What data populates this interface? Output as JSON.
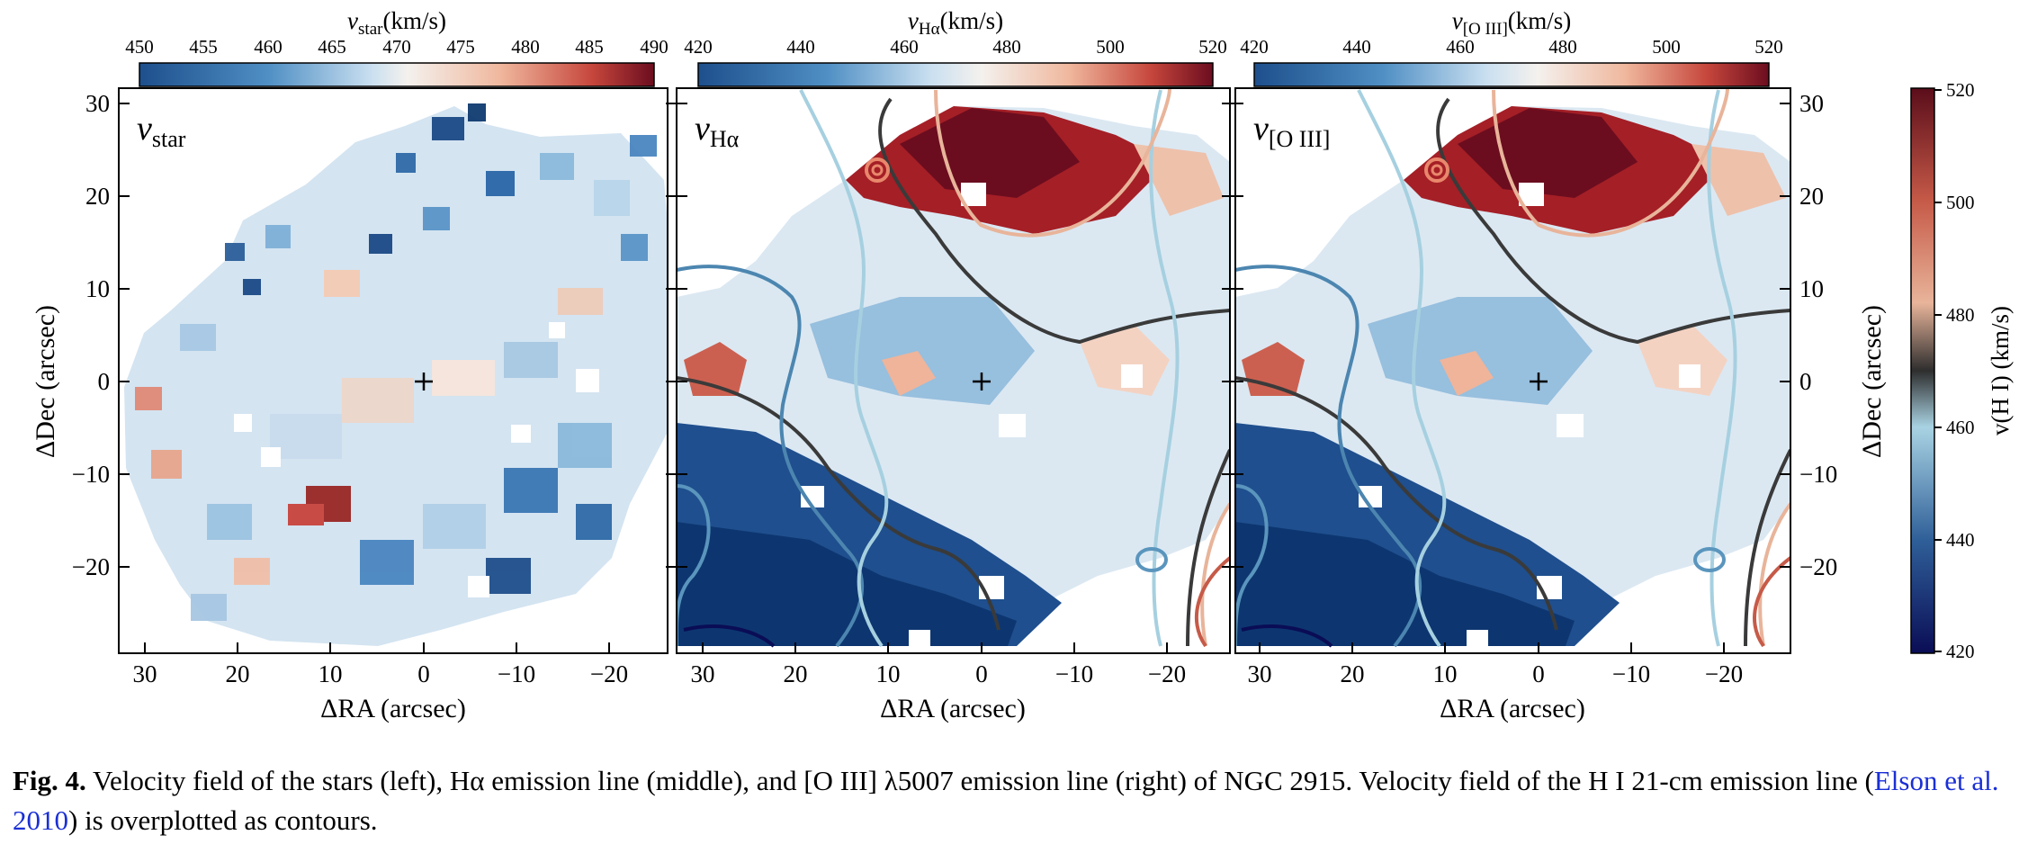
{
  "figure": {
    "panels": [
      {
        "id": "vstar",
        "label_main": "v",
        "label_sub": "star",
        "colorbar": {
          "title_main": "v",
          "title_sub": "star",
          "title_unit": "(km/s)",
          "ticks": [
            "450",
            "455",
            "460",
            "465",
            "470",
            "475",
            "480",
            "485",
            "490"
          ]
        }
      },
      {
        "id": "vha",
        "label_main": "v",
        "label_sub": "Hα",
        "colorbar": {
          "title_main": "v",
          "title_sub": "Hα",
          "title_unit": "(km/s)",
          "ticks": [
            "420",
            "440",
            "460",
            "480",
            "500",
            "520"
          ]
        }
      },
      {
        "id": "voiii",
        "label_main": "v",
        "label_sub": "[O III]",
        "colorbar": {
          "title_main": "v",
          "title_sub": "[O III]",
          "title_unit": "(km/s)",
          "ticks": [
            "420",
            "440",
            "460",
            "480",
            "500",
            "520"
          ]
        }
      }
    ],
    "x_axis": {
      "label": "ΔRA (arcsec)",
      "ticks": [
        "30",
        "20",
        "10",
        "0",
        "−10",
        "−20"
      ]
    },
    "y_axis": {
      "label": "ΔDec (arcsec)",
      "ticks": [
        "30",
        "20",
        "10",
        "0",
        "−10",
        "−20"
      ]
    },
    "hi_colorbar": {
      "label": "v(H I) (km/s)",
      "ticks": [
        "520",
        "500",
        "480",
        "460",
        "440",
        "420"
      ]
    },
    "colors": {
      "deep_blue": "#0c3570",
      "blue": "#2f6fad",
      "light_blue": "#a9cde3",
      "white": "#f6f4f2",
      "light_red": "#f0b49a",
      "red": "#c6423a",
      "dark_red": "#6b0d1f",
      "contour_dark": "#3a3a3a",
      "contour_navy": "#0a0d55"
    }
  },
  "caption": {
    "label": "Fig. 4.",
    "text_1": "Velocity field of the stars (left), Hα emission line (middle), and [O III] λ5007 emission line (right) of NGC 2915. Velocity field of the H I 21-cm emission line (",
    "citation": "Elson et al. 2010",
    "text_2": ") is overplotted as contours."
  }
}
